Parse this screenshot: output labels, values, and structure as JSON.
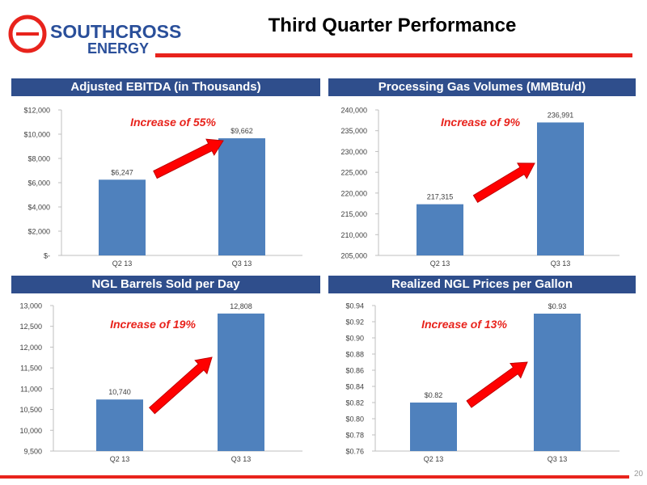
{
  "header": {
    "logo_line1": "SOUTHCROSS",
    "logo_line2": "ENERGY",
    "title": "Third Quarter Performance",
    "brand_red": "#e8231c",
    "brand_blue": "#2f4e8c"
  },
  "page_number": "20",
  "chart_data": [
    {
      "type": "bar",
      "title": "Adjusted EBITDA (in Thousands)",
      "categories": [
        "Q2 13",
        "Q3 13"
      ],
      "values": [
        6247,
        9662
      ],
      "value_labels": [
        "$6,247",
        "$9,662"
      ],
      "ylim": [
        0,
        12000
      ],
      "yticks": [
        0,
        2000,
        4000,
        6000,
        8000,
        10000,
        12000
      ],
      "ytick_labels": [
        "$-",
        "$2,000",
        "$4,000",
        "$6,000",
        "$8,000",
        "$10,000",
        "$12,000"
      ],
      "annotation": "Increase of 55%",
      "bar_color": "#4f81bd"
    },
    {
      "type": "bar",
      "title": "Processing Gas Volumes (MMBtu/d)",
      "categories": [
        "Q2 13",
        "Q3 13"
      ],
      "values": [
        217315,
        236991
      ],
      "value_labels": [
        "217,315",
        "236,991"
      ],
      "ylim": [
        205000,
        240000
      ],
      "yticks": [
        205000,
        210000,
        215000,
        220000,
        225000,
        230000,
        235000,
        240000
      ],
      "ytick_labels": [
        "205,000",
        "210,000",
        "215,000",
        "220,000",
        "225,000",
        "230,000",
        "235,000",
        "240,000"
      ],
      "annotation": "Increase of 9%",
      "bar_color": "#4f81bd"
    },
    {
      "type": "bar",
      "title": "NGL Barrels Sold per Day",
      "categories": [
        "Q2 13",
        "Q3 13"
      ],
      "values": [
        10740,
        12808
      ],
      "value_labels": [
        "10,740",
        "12,808"
      ],
      "ylim": [
        9500,
        13000
      ],
      "yticks": [
        9500,
        10000,
        10500,
        11000,
        11500,
        12000,
        12500,
        13000
      ],
      "ytick_labels": [
        "9,500",
        "10,000",
        "10,500",
        "11,000",
        "11,500",
        "12,000",
        "12,500",
        "13,000"
      ],
      "annotation": "Increase of 19%",
      "bar_color": "#4f81bd"
    },
    {
      "type": "bar",
      "title": "Realized NGL Prices per Gallon",
      "categories": [
        "Q2 13",
        "Q3 13"
      ],
      "values": [
        0.82,
        0.93
      ],
      "value_labels": [
        "$0.82",
        "$0.93"
      ],
      "ylim": [
        0.76,
        0.94
      ],
      "yticks": [
        0.76,
        0.78,
        0.8,
        0.82,
        0.84,
        0.86,
        0.88,
        0.9,
        0.92,
        0.94
      ],
      "ytick_labels": [
        "$0.76",
        "$0.78",
        "$0.80",
        "$0.82",
        "$0.84",
        "$0.86",
        "$0.88",
        "$0.90",
        "$0.92",
        "$0.94"
      ],
      "annotation": "Increase of 13%",
      "bar_color": "#4f81bd"
    }
  ]
}
